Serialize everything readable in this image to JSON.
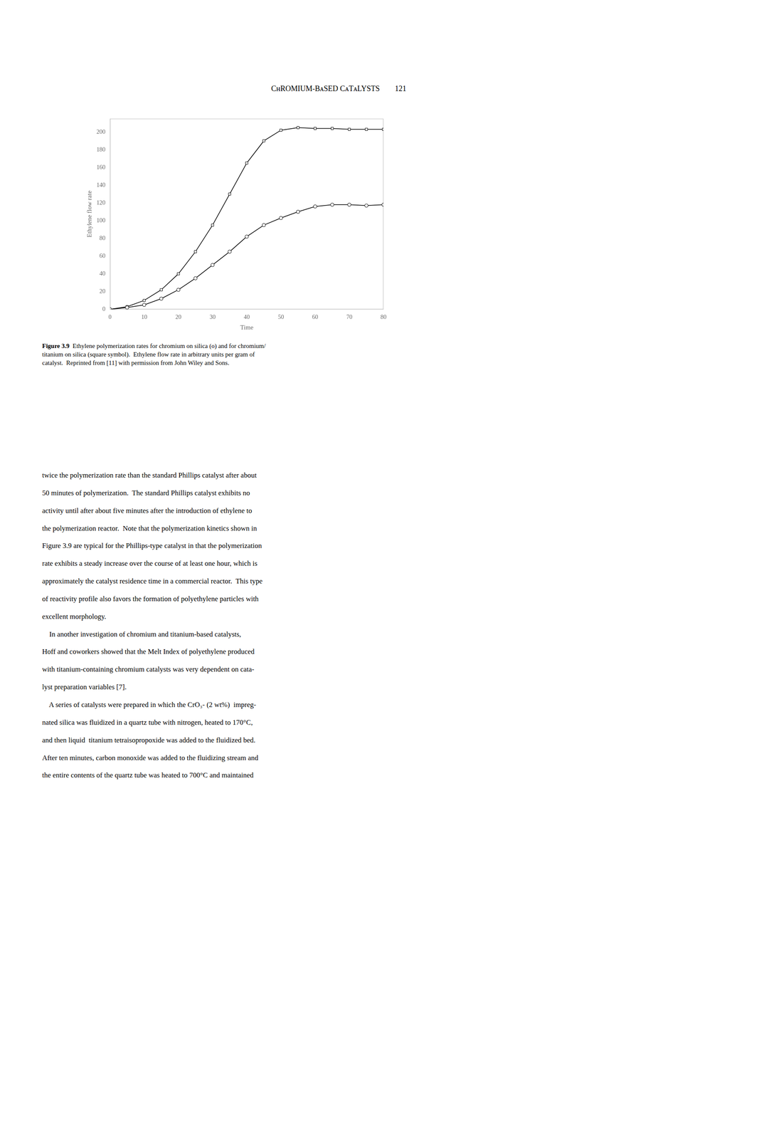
{
  "chart_data": {
    "type": "line",
    "title": "CʜROMIUM-BᴀSED CᴀTᴀLYSTS",
    "annotations": [
      "121",
      "Figure 3.9",
      "  Ethylene polymerization rates for chromium on silica (o) and for chromium/\ntitanium on silica (square symbol).  Ethylene flow rate in arbitrary units per gram of\ncatalyst.  Reprinted from [11] with permission from John Wiley and Sons.",
      "twice the polymerization rate than the standard Phillips catalyst after about",
      "50 minutes of polymerization.  The standard Phillips catalyst exhibits no",
      "activity until after about five minutes after the introduction of ethylene to",
      "the polymerization reactor.  Note that the polymerization kinetics shown in",
      "Figure 3.9 are typical for the Phillips-type catalyst in that the polymerization",
      "rate exhibits a steady increase over the course of at least one hour, which is",
      "approximately the catalyst residence time in a commercial reactor.  This type",
      "of reactivity profile also favors the formation of polyethylene particles with",
      "excellent morphology.",
      "    In another investigation of chromium and titanium-based catalysts,",
      "Hoff and coworkers showed that the Melt Index of polyethylene produced",
      "with titanium-containing chromium catalysts was very dependent on cata-",
      "lyst preparation variables [7].",
      "    A series of catalysts were prepared in which the CrO₃- (2 wt%)  impreg-",
      "nated silica was fluidized in a quartz tube with nitrogen, heated to 170°C,",
      "and then liquid  titanium tetraisopropoxide was added to the fluidized bed.",
      "After ten minutes, carbon monoxide was added to the fluidizing stream and",
      "the entire contents of the quartz tube was heated to 700°C and maintained"
    ],
    "x_label": "Time",
    "y_label": "Ethylene flow rate",
    "x": [
      0,
      5,
      10,
      15,
      20,
      25,
      30,
      35,
      40,
      45,
      50,
      55,
      60,
      65,
      70,
      75,
      80
    ],
    "series": [
      {
        "color": "#000000",
        "marker": "circle",
        "values": [
          0,
          2,
          5,
          12,
          22,
          35,
          50,
          65,
          82,
          95,
          103,
          110,
          116,
          118,
          118,
          117,
          118
        ]
      },
      {
        "color": "#000000",
        "marker": "square",
        "values": [
          0,
          3,
          10,
          22,
          40,
          65,
          95,
          130,
          165,
          190,
          202,
          205,
          204,
          204,
          203,
          203,
          203
        ]
      }
    ],
    "xlim": [
      0,
      80
    ],
    "ylim": [
      0,
      215
    ],
    "xticks": [
      0,
      10,
      20,
      30,
      40,
      50,
      60,
      70,
      80
    ],
    "yticks": [
      0,
      20,
      40,
      60,
      80,
      100,
      120,
      140,
      160,
      180,
      200
    ],
    "grid": false
  }
}
